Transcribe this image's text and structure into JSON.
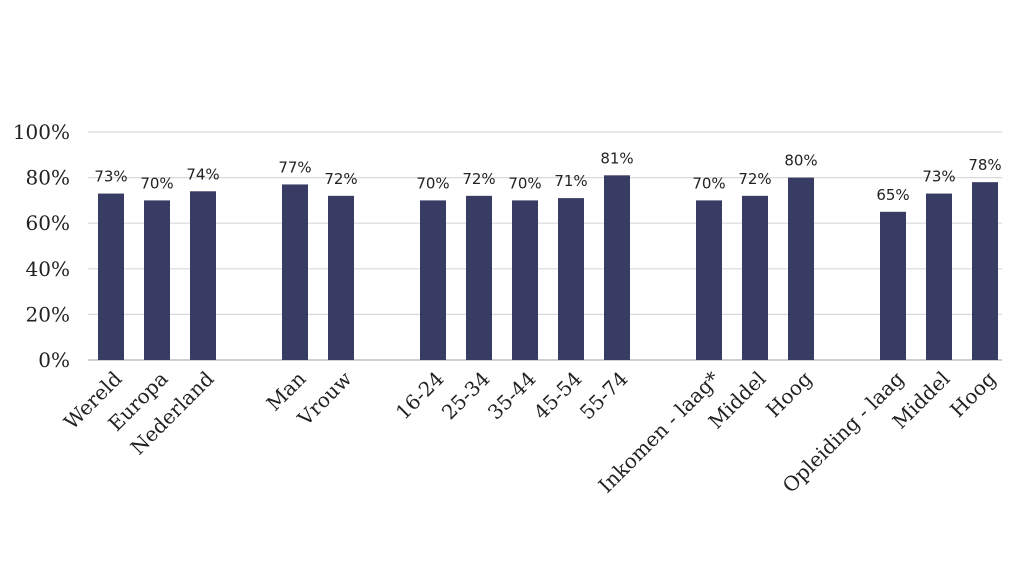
{
  "chart_data": {
    "type": "bar",
    "title": "",
    "xlabel": "",
    "ylabel": "",
    "ylim": [
      0,
      100
    ],
    "yticks": [
      "0%",
      "20%",
      "40%",
      "60%",
      "80%",
      "100%"
    ],
    "grid": true,
    "bar_color": "#383b63",
    "categories": [
      "Wereld",
      "Europa",
      "Nederland",
      "",
      "Man",
      "Vrouw",
      "",
      "16-24",
      "25-34",
      "35-44",
      "45-54",
      "55-74",
      "",
      "Inkomen - laag*",
      "Middel",
      "Hoog",
      "",
      "Opleiding - laag",
      "Middel",
      "Hoog"
    ],
    "values": [
      73,
      70,
      74,
      null,
      77,
      72,
      null,
      70,
      72,
      70,
      71,
      81,
      null,
      70,
      72,
      80,
      null,
      65,
      73,
      78
    ],
    "data_labels": [
      "73%",
      "70%",
      "74%",
      "",
      "77%",
      "72%",
      "",
      "70%",
      "72%",
      "70%",
      "71%",
      "81%",
      "",
      "70%",
      "72%",
      "80%",
      "",
      "65%",
      "73%",
      "78%"
    ]
  }
}
